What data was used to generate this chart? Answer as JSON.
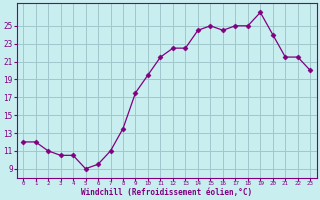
{
  "hours": [
    0,
    1,
    2,
    3,
    4,
    5,
    6,
    7,
    8,
    9,
    10,
    11,
    12,
    13,
    14,
    15,
    16,
    17,
    18,
    19,
    20,
    21,
    22,
    23
  ],
  "values": [
    12.0,
    12.0,
    11.0,
    10.5,
    10.5,
    9.0,
    9.5,
    11.0,
    13.5,
    17.5,
    19.5,
    21.5,
    22.5,
    22.5,
    24.5,
    25.0,
    24.5,
    25.0,
    25.0,
    26.5,
    24.0,
    21.5,
    21.5,
    20.0
  ],
  "line_color": "#800080",
  "marker": ".",
  "bg_color": "#c8eef0",
  "grid_color": "#a0c8cc",
  "xlabel": "Windchill (Refroidissement éolien,°C)",
  "yticks": [
    9,
    11,
    13,
    15,
    17,
    19,
    21,
    23,
    25
  ],
  "xtick_labels": [
    "0",
    "1",
    "2",
    "3",
    "4",
    "5",
    "6",
    "7",
    "8",
    "9",
    "10",
    "11",
    "12",
    "13",
    "14",
    "15",
    "16",
    "17",
    "18",
    "19",
    "20",
    "21",
    "22",
    "23"
  ],
  "ylim": [
    8.0,
    27.5
  ],
  "xlim": [
    -0.5,
    23.5
  ],
  "axis_color": "#800080",
  "tick_color": "#800080",
  "label_color": "#800080"
}
